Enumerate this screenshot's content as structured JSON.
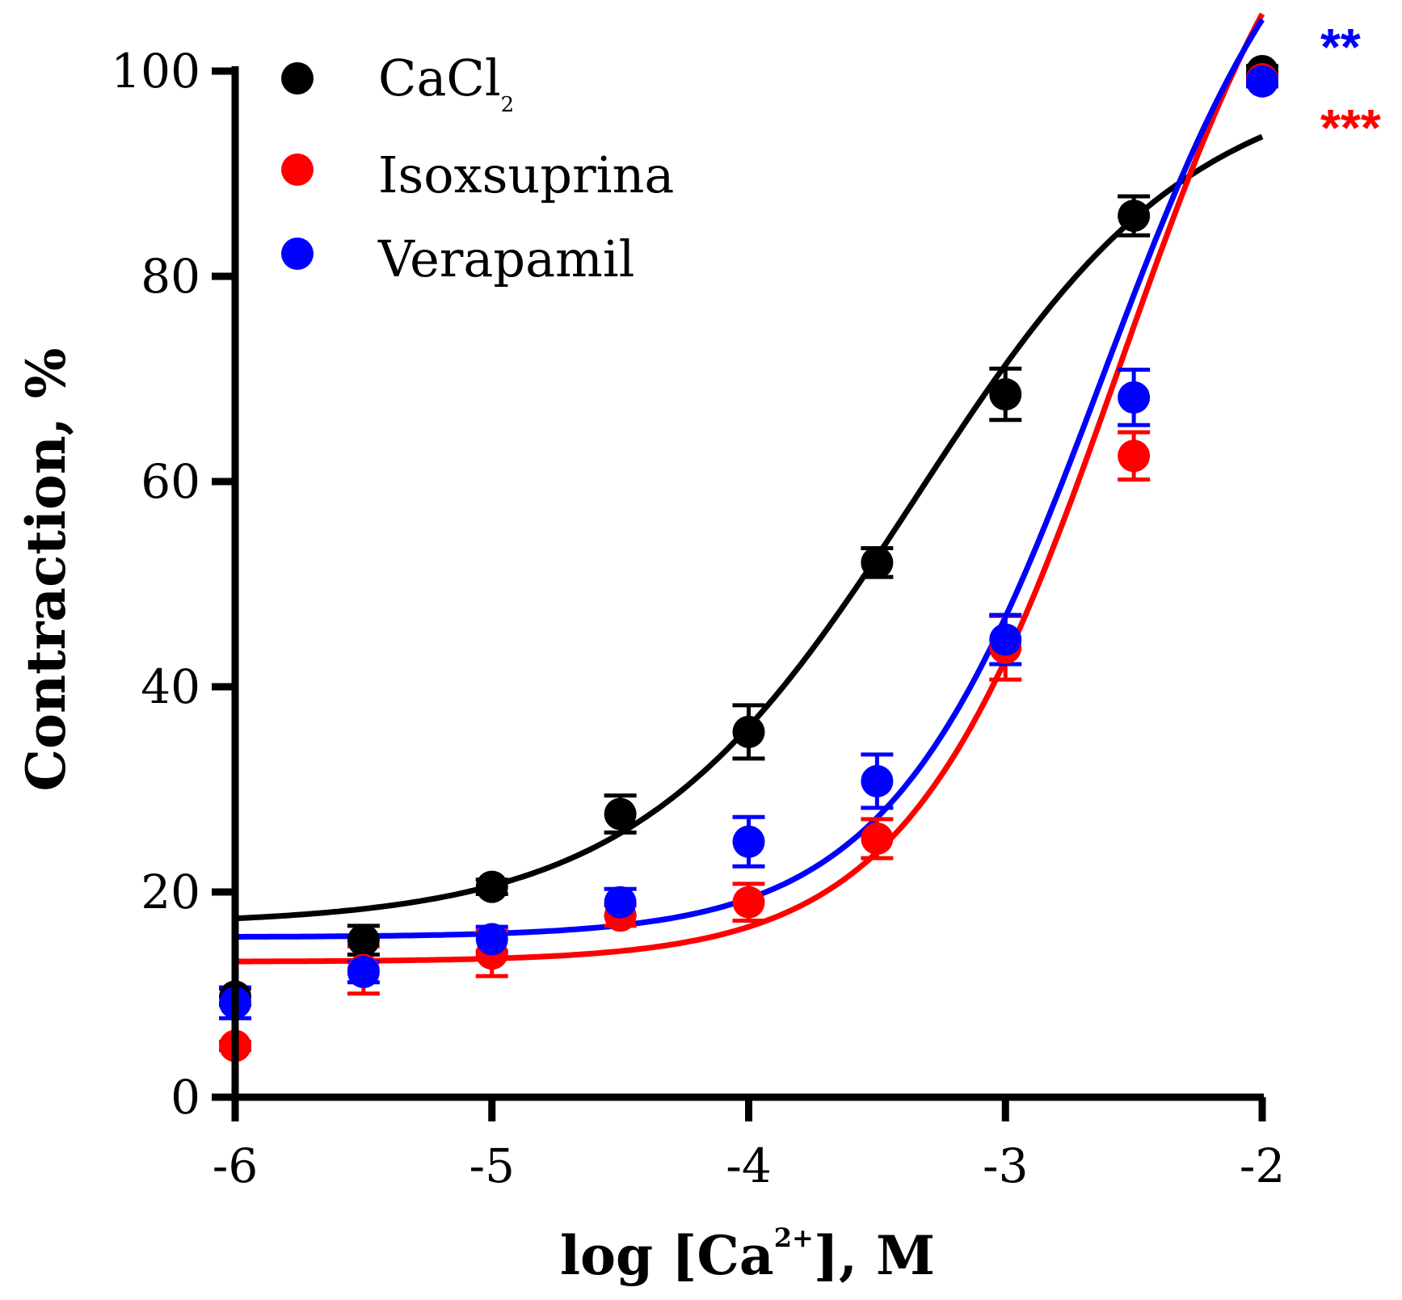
{
  "chart_data": {
    "type": "scatter",
    "xlabel": {
      "prefix": "log [Ca",
      "sup": "2+",
      "suffix": "],  M"
    },
    "ylabel": "Contraction, %",
    "xlim": [
      -6,
      -2
    ],
    "ylim": [
      0,
      100
    ],
    "xticks": [
      -6,
      -5,
      -4,
      -3,
      -2
    ],
    "yticks": [
      0,
      20,
      40,
      60,
      80,
      100
    ],
    "x": [
      -6,
      -5.5,
      -5,
      -4.5,
      -4,
      -3.5,
      -3,
      -2.5,
      -2
    ],
    "series": [
      {
        "name": "CaCl",
        "subscript": "2",
        "color": "#000000",
        "values": [
          9.8,
          15.3,
          20.5,
          27.6,
          35.6,
          52.1,
          68.5,
          85.9,
          100
        ],
        "errors": [
          0.8,
          1.4,
          0.7,
          1.8,
          2.6,
          1.4,
          2.5,
          1.9,
          0.5
        ],
        "fit": {
          "bottom": 16.8,
          "top": 100,
          "logec50": -3.35,
          "hill": 0.8
        }
      },
      {
        "name": "Isoxsuprina",
        "color": "#ff0000",
        "values": [
          5.0,
          12.4,
          14.0,
          17.7,
          19.0,
          25.2,
          43.8,
          62.5,
          99.2
        ],
        "errors": [
          0.4,
          2.3,
          2.2,
          1.0,
          1.8,
          1.9,
          3.1,
          2.3,
          0.5
        ],
        "fit": {
          "bottom": 13.2,
          "top": 130,
          "logec50": -2.55,
          "hill": 1.05
        }
      },
      {
        "name": "Verapamil",
        "color": "#0000ff",
        "values": [
          9.2,
          12.2,
          15.4,
          19.0,
          24.9,
          30.8,
          44.6,
          68.2,
          99.0
        ],
        "errors": [
          1.5,
          1.0,
          1.2,
          1.3,
          2.4,
          2.6,
          2.4,
          2.7,
          0.5
        ],
        "fit": {
          "bottom": 15.6,
          "top": 125,
          "logec50": -2.62,
          "hill": 1.05
        }
      }
    ],
    "annotations": [
      {
        "text": "**",
        "color": "#0000ff"
      },
      {
        "text": "***",
        "color": "#ff0000"
      }
    ],
    "legend_position": "top-left"
  }
}
